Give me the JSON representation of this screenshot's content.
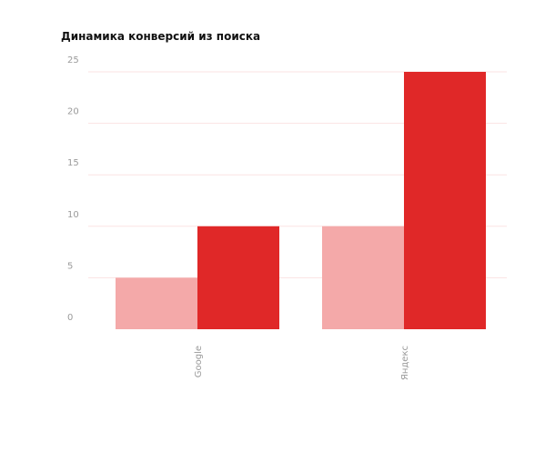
{
  "chart_data": {
    "type": "bar",
    "title": "Динамика конверсий из поиска",
    "xlabel": "",
    "ylabel": "",
    "categories": [
      "Google",
      "Яндекс"
    ],
    "series": [
      {
        "values": [
          5,
          10
        ],
        "color": "#f4a9a9"
      },
      {
        "values": [
          10,
          25
        ],
        "color": "#e02828"
      }
    ],
    "ylim": [
      0,
      25
    ],
    "yticks": [
      0,
      5,
      10,
      15,
      20,
      25
    ],
    "grid": true,
    "legend": "none"
  }
}
